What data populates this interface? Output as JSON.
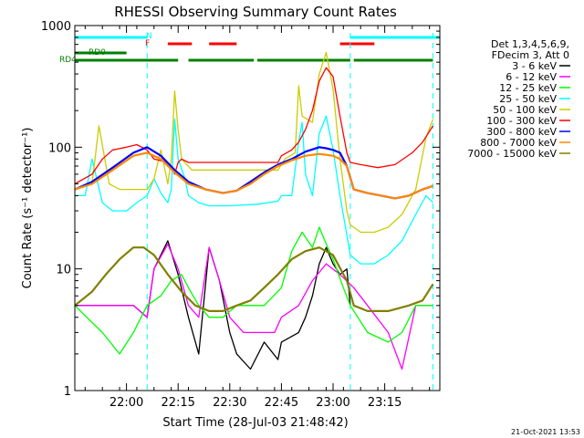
{
  "chart_data": {
    "type": "line",
    "title": "RHESSI Observing Summary Count Rates",
    "xlabel": "Start Time (28-Jul-03 21:48:42)",
    "ylabel": "Count Rate (s⁻¹ detector⁻¹)",
    "y_scale": "log",
    "ylim": [
      1,
      1000
    ],
    "xlim_minutes": [
      -3,
      103
    ],
    "x_ticks": [
      "22:00",
      "22:15",
      "22:30",
      "22:45",
      "23:00",
      "23:15"
    ],
    "y_ticks": [
      "1",
      "10",
      "100",
      "1000"
    ],
    "legend_header": [
      "Det 1,3,4,5,6,9,",
      "FDecim 3, Att 0"
    ],
    "legend_position": "right",
    "timestamp": "21-Oct-2021 13:53",
    "flags": [
      {
        "label": "N",
        "color": "#00ffff",
        "segments": [
          [
            -3,
            18
          ],
          [
            77,
            103
          ]
        ]
      },
      {
        "label": "F",
        "color": "#ff0000",
        "segments": [
          [
            24,
            31
          ],
          [
            36,
            44
          ],
          [
            74,
            84
          ]
        ]
      },
      {
        "label": "RD0",
        "color": "#008000",
        "segments": [
          [
            -3,
            12
          ]
        ]
      },
      {
        "label": "RD4",
        "color": "#008000",
        "segments": [
          [
            -3,
            27
          ],
          [
            30,
            49
          ],
          [
            50,
            77
          ],
          [
            78,
            101
          ]
        ]
      }
    ],
    "series": [
      {
        "name": "3 - 6 keV",
        "color": "#000000",
        "x": [
          -3,
          8,
          14,
          18,
          20,
          24,
          27,
          30,
          33,
          36,
          39,
          42,
          44,
          48,
          52,
          56,
          57,
          62,
          64,
          66,
          68,
          70,
          72,
          74,
          76,
          77
        ],
        "y": [
          5,
          5,
          5,
          4,
          10,
          17,
          9,
          4,
          2,
          15,
          8,
          3,
          2,
          1.5,
          2.5,
          1.8,
          2.5,
          3,
          4,
          6,
          11,
          15,
          11,
          9,
          10,
          5
        ]
      },
      {
        "name": "6 - 12 keV",
        "color": "#ff00ff",
        "x": [
          -3,
          8,
          14,
          18,
          20,
          24,
          27,
          30,
          33,
          36,
          39,
          42,
          46,
          50,
          55,
          57,
          62,
          66,
          70,
          74,
          78,
          82,
          88,
          92,
          96,
          101
        ],
        "y": [
          5,
          5,
          5,
          4,
          10,
          16,
          10,
          5,
          4,
          15,
          8,
          4,
          3,
          3,
          3,
          4,
          5,
          8,
          11,
          9,
          7,
          5,
          3,
          1.5,
          5,
          5
        ]
      },
      {
        "name": "12 - 25 keV",
        "color": "#00ff00",
        "x": [
          -3,
          5,
          10,
          14,
          18,
          22,
          25,
          28,
          30,
          33,
          36,
          40,
          44,
          48,
          52,
          57,
          60,
          63,
          66,
          68,
          70,
          72,
          75,
          77,
          82,
          88,
          92,
          96,
          101
        ],
        "y": [
          5,
          3,
          2,
          3,
          5,
          6,
          8,
          9,
          7,
          5,
          4,
          4,
          5,
          5,
          5,
          7,
          14,
          20,
          15,
          22,
          16,
          12,
          7,
          5,
          3,
          2.5,
          3,
          5,
          5
        ]
      },
      {
        "name": "25 - 50 keV",
        "color": "#00ffff",
        "x": [
          -3,
          0,
          2,
          5,
          8,
          12,
          15,
          18,
          20,
          22,
          24,
          25,
          26,
          27,
          29,
          30,
          33,
          36,
          42,
          50,
          56,
          57,
          60,
          62,
          63,
          64,
          66,
          68,
          70,
          72,
          74,
          77,
          80,
          84,
          88,
          92,
          96,
          99,
          101
        ],
        "y": [
          40,
          40,
          80,
          35,
          30,
          30,
          35,
          40,
          55,
          42,
          35,
          45,
          170,
          80,
          55,
          40,
          35,
          33,
          33,
          34,
          36,
          40,
          40,
          110,
          160,
          60,
          40,
          130,
          180,
          95,
          40,
          13,
          11,
          11,
          13,
          17,
          28,
          40,
          35
        ]
      },
      {
        "name": "50 - 100 keV",
        "color": "#cccc00",
        "x": [
          -3,
          2,
          4,
          7,
          10,
          15,
          18,
          20,
          22,
          24,
          25,
          26,
          27,
          28,
          31,
          36,
          42,
          50,
          56,
          58,
          61,
          62,
          63,
          66,
          68,
          70,
          72,
          74,
          76,
          77,
          80,
          84,
          88,
          92,
          96,
          99,
          101
        ],
        "y": [
          45,
          50,
          150,
          50,
          45,
          45,
          45,
          55,
          95,
          50,
          80,
          290,
          140,
          80,
          65,
          65,
          65,
          65,
          65,
          80,
          90,
          320,
          180,
          160,
          400,
          600,
          300,
          80,
          30,
          23,
          20,
          20,
          22,
          28,
          45,
          120,
          170
        ]
      },
      {
        "name": "100 - 300 keV",
        "color": "#ff0000",
        "x": [
          -3,
          2,
          5,
          8,
          12,
          15,
          18,
          20,
          24,
          25,
          26,
          27,
          28,
          30,
          35,
          42,
          50,
          56,
          57,
          60,
          62,
          64,
          66,
          68,
          70,
          72,
          74,
          76,
          77,
          80,
          85,
          90,
          95,
          98,
          101
        ],
        "y": [
          50,
          60,
          80,
          95,
          100,
          105,
          95,
          80,
          75,
          70,
          60,
          75,
          80,
          75,
          75,
          75,
          75,
          75,
          85,
          95,
          110,
          140,
          200,
          350,
          450,
          380,
          180,
          90,
          75,
          72,
          68,
          72,
          90,
          110,
          150
        ]
      },
      {
        "name": "300 - 800 keV",
        "color": "#0000ff",
        "x": [
          -3,
          2,
          8,
          14,
          18,
          22,
          26,
          30,
          35,
          40,
          44,
          48,
          52,
          56,
          60,
          64,
          68,
          70,
          72,
          74,
          76,
          78,
          82,
          86,
          90,
          94,
          98,
          101
        ],
        "y": [
          45,
          52,
          68,
          90,
          100,
          85,
          65,
          52,
          45,
          42,
          44,
          52,
          62,
          72,
          80,
          92,
          100,
          98,
          95,
          90,
          70,
          45,
          42,
          40,
          38,
          40,
          45,
          48
        ]
      },
      {
        "name": "800 - 7000 keV",
        "color": "#ff8800",
        "x": [
          -3,
          2,
          8,
          14,
          18,
          22,
          26,
          30,
          35,
          40,
          44,
          48,
          52,
          56,
          60,
          64,
          68,
          72,
          74,
          76,
          78,
          82,
          86,
          90,
          94,
          98,
          101
        ],
        "y": [
          45,
          50,
          65,
          85,
          90,
          80,
          62,
          50,
          45,
          42,
          44,
          50,
          60,
          70,
          78,
          85,
          88,
          85,
          80,
          70,
          45,
          42,
          40,
          38,
          40,
          45,
          48
        ]
      },
      {
        "name": "7000 - 15000 keV",
        "color": "#808000",
        "x": [
          -3,
          2,
          6,
          10,
          14,
          17,
          20,
          24,
          28,
          32,
          36,
          40,
          44,
          48,
          52,
          56,
          60,
          64,
          68,
          72,
          76,
          78,
          82,
          88,
          94,
          98,
          101
        ],
        "y": [
          5,
          6.5,
          9,
          12,
          15,
          15,
          13,
          9,
          6.5,
          5,
          4.5,
          4.5,
          5,
          5.5,
          7,
          9,
          12,
          14,
          15,
          13,
          8,
          5,
          4.5,
          4.5,
          5,
          5.5,
          7.5
        ]
      }
    ]
  }
}
